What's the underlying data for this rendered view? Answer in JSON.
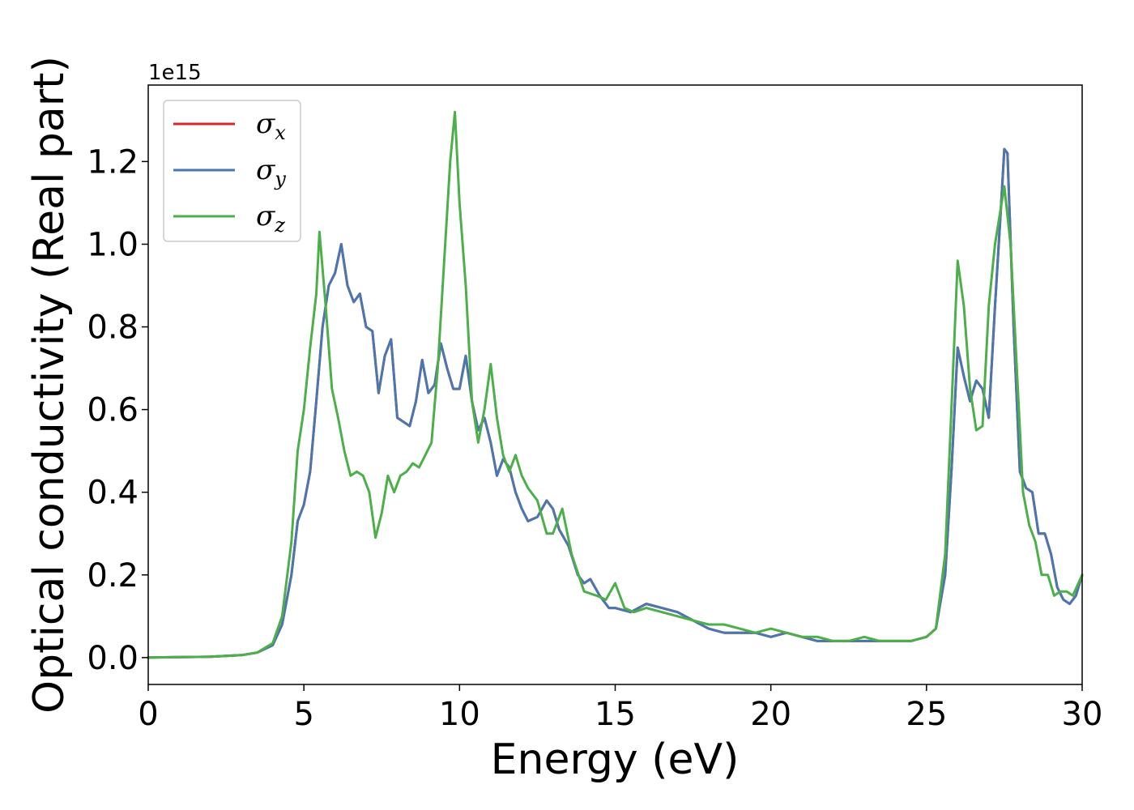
{
  "chart_data": {
    "type": "line",
    "xlabel": "Energy (eV)",
    "ylabel": "Optical conductivity (Real part)",
    "y_offset_label": "1e15",
    "xlim": [
      0,
      30
    ],
    "ylim": [
      -0.065,
      1.385
    ],
    "xticks": [
      0,
      5,
      10,
      15,
      20,
      25,
      30
    ],
    "yticks": [
      0.0,
      0.2,
      0.4,
      0.6,
      0.8,
      1.0,
      1.2
    ],
    "ytick_labels": [
      "0.0",
      "0.2",
      "0.4",
      "0.6",
      "0.8",
      "1.0",
      "1.2"
    ],
    "grid": false,
    "legend_position": "top-left",
    "series": [
      {
        "name": "σx",
        "symbol": "σ",
        "subscript": "x",
        "color": "#d62728",
        "x": [
          0,
          1,
          2,
          3,
          3.5,
          4,
          4.3,
          4.6,
          4.8,
          5,
          5.2,
          5.4,
          5.6,
          5.8,
          6,
          6.2,
          6.4,
          6.6,
          6.8,
          7,
          7.2,
          7.4,
          7.6,
          7.8,
          8,
          8.2,
          8.4,
          8.6,
          8.8,
          9,
          9.2,
          9.4,
          9.6,
          9.8,
          10,
          10.2,
          10.4,
          10.6,
          10.8,
          11,
          11.2,
          11.4,
          11.6,
          11.8,
          12,
          12.2,
          12.5,
          12.8,
          13,
          13.2,
          13.5,
          13.8,
          14,
          14.2,
          14.5,
          14.8,
          15,
          15.5,
          16,
          16.5,
          17,
          17.5,
          18,
          18.5,
          19,
          19.5,
          20,
          20.5,
          21,
          21.5,
          22,
          22.5,
          23,
          23.5,
          24,
          24.5,
          25,
          25.3,
          25.6,
          25.8,
          26,
          26.2,
          26.4,
          26.6,
          26.8,
          27,
          27.2,
          27.4,
          27.5,
          27.6,
          27.8,
          28,
          28.2,
          28.4,
          28.6,
          28.8,
          29,
          29.2,
          29.4,
          29.6,
          29.8,
          30
        ],
        "values": [
          0,
          0.001,
          0.002,
          0.006,
          0.012,
          0.03,
          0.08,
          0.2,
          0.33,
          0.37,
          0.45,
          0.62,
          0.8,
          0.9,
          0.93,
          1.0,
          0.9,
          0.86,
          0.88,
          0.8,
          0.79,
          0.64,
          0.73,
          0.77,
          0.58,
          0.57,
          0.56,
          0.62,
          0.72,
          0.64,
          0.66,
          0.76,
          0.7,
          0.65,
          0.65,
          0.73,
          0.62,
          0.55,
          0.58,
          0.52,
          0.44,
          0.48,
          0.46,
          0.4,
          0.36,
          0.33,
          0.34,
          0.38,
          0.36,
          0.31,
          0.27,
          0.2,
          0.18,
          0.19,
          0.15,
          0.12,
          0.12,
          0.11,
          0.13,
          0.12,
          0.11,
          0.09,
          0.07,
          0.06,
          0.06,
          0.06,
          0.05,
          0.06,
          0.05,
          0.04,
          0.04,
          0.04,
          0.04,
          0.04,
          0.04,
          0.04,
          0.05,
          0.07,
          0.2,
          0.45,
          0.75,
          0.68,
          0.62,
          0.67,
          0.65,
          0.58,
          0.85,
          1.1,
          1.23,
          1.22,
          0.8,
          0.45,
          0.41,
          0.4,
          0.3,
          0.3,
          0.25,
          0.17,
          0.14,
          0.13,
          0.15,
          0.2
        ]
      },
      {
        "name": "σy",
        "symbol": "σ",
        "subscript": "y",
        "color": "#4a77b0",
        "x": [
          0,
          1,
          2,
          3,
          3.5,
          4,
          4.3,
          4.6,
          4.8,
          5,
          5.2,
          5.4,
          5.6,
          5.8,
          6,
          6.2,
          6.4,
          6.6,
          6.8,
          7,
          7.2,
          7.4,
          7.6,
          7.8,
          8,
          8.2,
          8.4,
          8.6,
          8.8,
          9,
          9.2,
          9.4,
          9.6,
          9.8,
          10,
          10.2,
          10.4,
          10.6,
          10.8,
          11,
          11.2,
          11.4,
          11.6,
          11.8,
          12,
          12.2,
          12.5,
          12.8,
          13,
          13.2,
          13.5,
          13.8,
          14,
          14.2,
          14.5,
          14.8,
          15,
          15.5,
          16,
          16.5,
          17,
          17.5,
          18,
          18.5,
          19,
          19.5,
          20,
          20.5,
          21,
          21.5,
          22,
          22.5,
          23,
          23.5,
          24,
          24.5,
          25,
          25.3,
          25.6,
          25.8,
          26,
          26.2,
          26.4,
          26.6,
          26.8,
          27,
          27.2,
          27.4,
          27.5,
          27.6,
          27.8,
          28,
          28.2,
          28.4,
          28.6,
          28.8,
          29,
          29.2,
          29.4,
          29.6,
          29.8,
          30
        ],
        "values": [
          0,
          0.001,
          0.002,
          0.006,
          0.012,
          0.03,
          0.08,
          0.2,
          0.33,
          0.37,
          0.45,
          0.62,
          0.8,
          0.9,
          0.93,
          1.0,
          0.9,
          0.86,
          0.88,
          0.8,
          0.79,
          0.64,
          0.73,
          0.77,
          0.58,
          0.57,
          0.56,
          0.62,
          0.72,
          0.64,
          0.66,
          0.76,
          0.7,
          0.65,
          0.65,
          0.73,
          0.62,
          0.55,
          0.58,
          0.52,
          0.44,
          0.48,
          0.46,
          0.4,
          0.36,
          0.33,
          0.34,
          0.38,
          0.36,
          0.31,
          0.27,
          0.2,
          0.18,
          0.19,
          0.15,
          0.12,
          0.12,
          0.11,
          0.13,
          0.12,
          0.11,
          0.09,
          0.07,
          0.06,
          0.06,
          0.06,
          0.05,
          0.06,
          0.05,
          0.04,
          0.04,
          0.04,
          0.04,
          0.04,
          0.04,
          0.04,
          0.05,
          0.07,
          0.2,
          0.45,
          0.75,
          0.68,
          0.62,
          0.67,
          0.65,
          0.58,
          0.85,
          1.1,
          1.23,
          1.22,
          0.8,
          0.45,
          0.41,
          0.4,
          0.3,
          0.3,
          0.25,
          0.17,
          0.14,
          0.13,
          0.15,
          0.2
        ]
      },
      {
        "name": "σz",
        "symbol": "σ",
        "subscript": "z",
        "color": "#4daf4a",
        "x": [
          0,
          1,
          2,
          3,
          3.5,
          4,
          4.3,
          4.6,
          4.8,
          5,
          5.2,
          5.4,
          5.5,
          5.7,
          5.9,
          6.1,
          6.3,
          6.5,
          6.7,
          6.9,
          7.1,
          7.3,
          7.5,
          7.7,
          7.9,
          8.1,
          8.3,
          8.5,
          8.7,
          8.9,
          9.1,
          9.3,
          9.5,
          9.7,
          9.85,
          10,
          10.2,
          10.4,
          10.6,
          10.8,
          11,
          11.2,
          11.4,
          11.6,
          11.8,
          12,
          12.2,
          12.5,
          12.8,
          13,
          13.3,
          13.6,
          14,
          14.4,
          14.7,
          15,
          15.3,
          15.6,
          16,
          16.5,
          17,
          17.5,
          18,
          18.5,
          19,
          19.5,
          20,
          20.5,
          21,
          21.5,
          22,
          22.5,
          23,
          23.5,
          24,
          24.5,
          25,
          25.3,
          25.6,
          25.8,
          26,
          26.2,
          26.4,
          26.6,
          26.8,
          27,
          27.2,
          27.5,
          27.7,
          27.9,
          28.1,
          28.3,
          28.5,
          28.7,
          28.9,
          29.1,
          29.3,
          29.5,
          29.7,
          30
        ],
        "values": [
          0,
          0.001,
          0.002,
          0.006,
          0.012,
          0.035,
          0.1,
          0.28,
          0.5,
          0.6,
          0.75,
          0.88,
          1.03,
          0.85,
          0.65,
          0.58,
          0.5,
          0.44,
          0.45,
          0.44,
          0.4,
          0.29,
          0.35,
          0.44,
          0.4,
          0.44,
          0.45,
          0.47,
          0.46,
          0.49,
          0.52,
          0.7,
          0.95,
          1.2,
          1.32,
          1.1,
          0.9,
          0.62,
          0.52,
          0.6,
          0.71,
          0.58,
          0.49,
          0.45,
          0.49,
          0.44,
          0.41,
          0.38,
          0.3,
          0.3,
          0.36,
          0.25,
          0.16,
          0.15,
          0.14,
          0.18,
          0.12,
          0.11,
          0.12,
          0.11,
          0.1,
          0.09,
          0.08,
          0.08,
          0.07,
          0.06,
          0.07,
          0.06,
          0.05,
          0.05,
          0.04,
          0.04,
          0.05,
          0.04,
          0.04,
          0.04,
          0.05,
          0.07,
          0.25,
          0.6,
          0.96,
          0.85,
          0.65,
          0.55,
          0.56,
          0.85,
          1.0,
          1.14,
          1.0,
          0.7,
          0.4,
          0.32,
          0.28,
          0.2,
          0.2,
          0.15,
          0.16,
          0.16,
          0.15,
          0.2
        ]
      }
    ]
  }
}
